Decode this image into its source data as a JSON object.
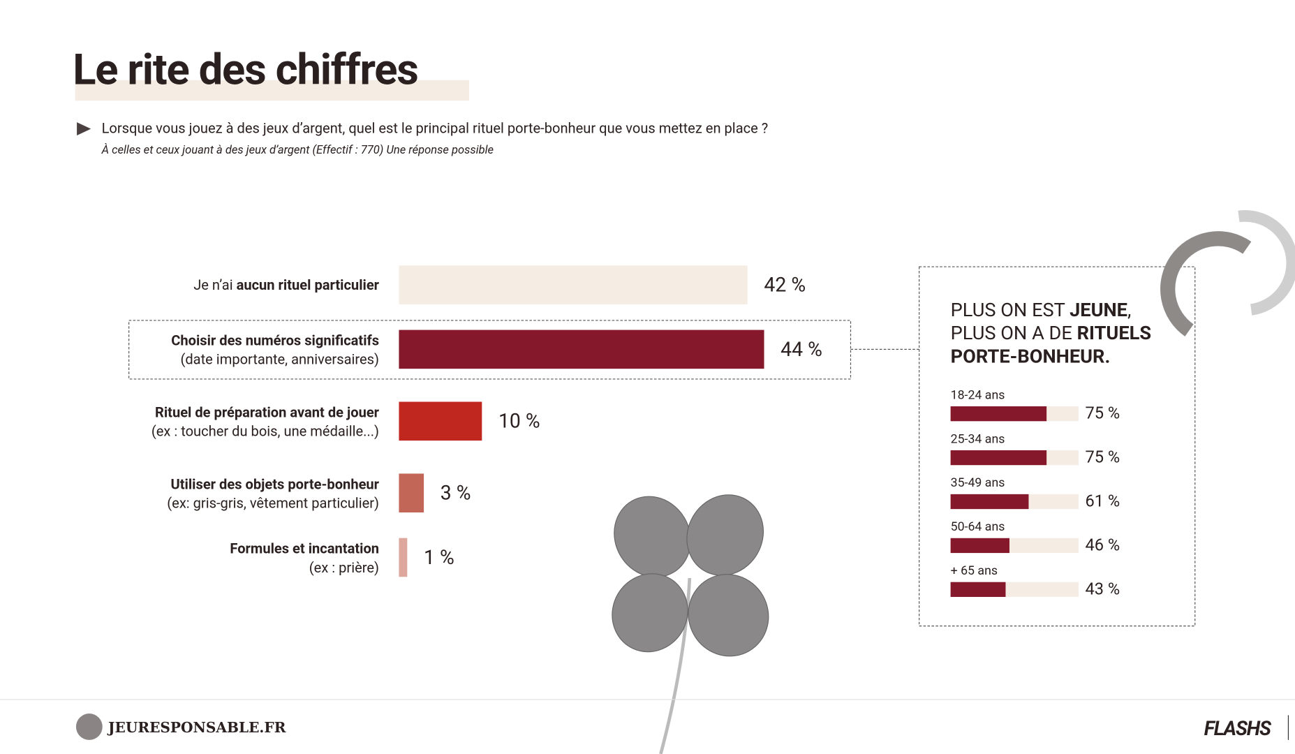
{
  "header": {
    "title": "Le rite des chiffres",
    "question": "Lorsque vous jouez à des jeux d’argent, quel est le principal rituel porte-bonheur que vous mettez en place ?",
    "subtitle": "À celles et ceux jouant à des jeux d’argent (Effectif : 770) Une réponse possible"
  },
  "chart_data": [
    {
      "type": "bar",
      "categories": [
        [
          "Je n’ai ",
          "aucun rituel particulier"
        ],
        [
          "Choisir des numéros significatifs",
          "(date importante, anniversaires)"
        ],
        [
          "Rituel de préparation avant de jouer",
          "(ex : toucher du bois, une médaille...)"
        ],
        [
          "Utiliser des objets porte-bonheur",
          "(ex: gris-gris, vêtement particulier)"
        ],
        [
          "Formules et incantation",
          "(ex : prière)"
        ]
      ],
      "values": [
        42,
        44,
        10,
        3,
        1
      ],
      "value_labels": [
        "42 %",
        "44 %",
        "10 %",
        "3 %",
        "1 %"
      ],
      "colors": [
        "#f5ede4",
        "#85182a",
        "#c0281f",
        "#c26757",
        "#dda79d"
      ]
    },
    {
      "type": "bar",
      "title": [
        [
          "PLUS ON EST ",
          "JEUNE",
          ","
        ],
        [
          "PLUS ON A DE ",
          "RITUELS"
        ],
        [
          "PORTE-BONHEUR."
        ]
      ],
      "categories": [
        "18-24 ans",
        "25-34 ans",
        "35-49 ans",
        "50-64 ans",
        "+ 65 ans"
      ],
      "values": [
        75,
        75,
        61,
        46,
        43
      ],
      "value_labels": [
        "75 %",
        "75 %",
        "61 %",
        "46 %",
        "43 %"
      ],
      "color": "#85182a"
    }
  ],
  "footer": {
    "brand": "JEURESPONSABLE.FR",
    "logo": "FLASHS"
  }
}
